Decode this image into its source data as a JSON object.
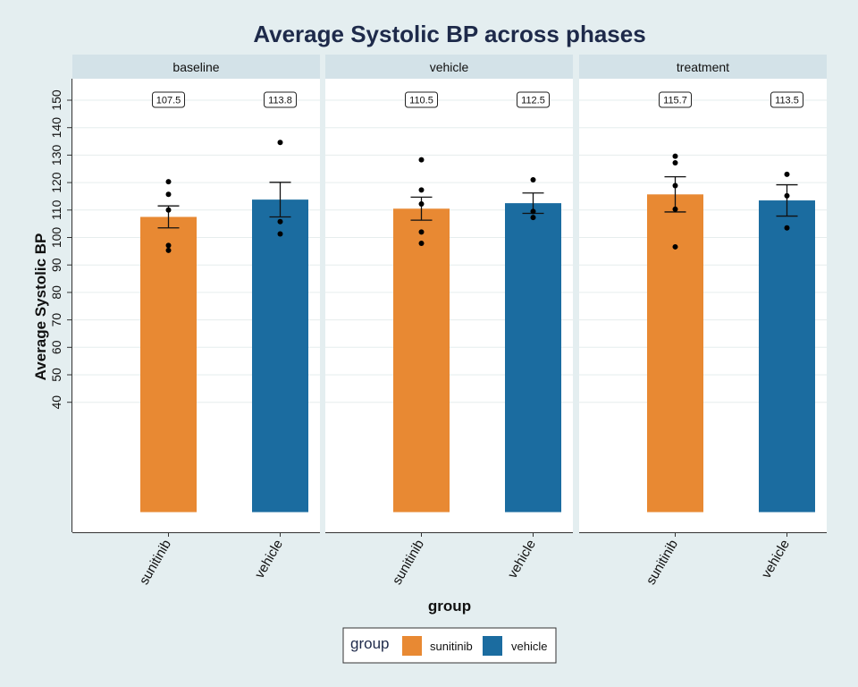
{
  "chart_data": {
    "type": "bar",
    "title": "Average Systolic BP across phases",
    "xlabel": "group",
    "ylabel": "Average Systolic BP",
    "ylim": [
      0,
      160
    ],
    "yticks": [
      40,
      50,
      60,
      70,
      80,
      90,
      100,
      110,
      120,
      130,
      140,
      150
    ],
    "grid": true,
    "categories": [
      "sunitinib",
      "vehicle"
    ],
    "legend": {
      "title": "group",
      "position": "bottom",
      "entries": [
        {
          "label": "sunitinib",
          "color": "#e88933"
        },
        {
          "label": "vehicle",
          "color": "#1b6ca0"
        }
      ]
    },
    "facets": [
      {
        "label": "baseline",
        "bars": [
          {
            "group": "sunitinib",
            "value": 107.5,
            "label": "107.5",
            "err_low": 103.5,
            "err_high": 111.5,
            "points": [
              120.3,
              115.7,
              110.0,
              97.1,
              95.3
            ]
          },
          {
            "group": "vehicle",
            "value": 113.8,
            "label": "113.8",
            "err_low": 107.5,
            "err_high": 120.1,
            "points": [
              134.6,
              105.8,
              101.3
            ]
          }
        ]
      },
      {
        "label": "vehicle",
        "bars": [
          {
            "group": "sunitinib",
            "value": 110.5,
            "label": "110.5",
            "err_low": 106.3,
            "err_high": 114.7,
            "points": [
              128.3,
              117.3,
              112.2,
              102.0,
              97.9
            ]
          },
          {
            "group": "vehicle",
            "value": 112.5,
            "label": "112.5",
            "err_low": 108.8,
            "err_high": 116.2,
            "points": [
              121.0,
              109.5,
              107.3
            ]
          }
        ]
      },
      {
        "label": "treatment",
        "bars": [
          {
            "group": "sunitinib",
            "value": 115.7,
            "label": "115.7",
            "err_low": 109.3,
            "err_high": 122.1,
            "points": [
              129.6,
              127.2,
              118.9,
              110.3,
              96.6
            ]
          },
          {
            "group": "vehicle",
            "value": 113.5,
            "label": "113.5",
            "err_low": 107.8,
            "err_high": 119.2,
            "points": [
              123.0,
              115.2,
              103.5
            ]
          }
        ]
      }
    ]
  }
}
